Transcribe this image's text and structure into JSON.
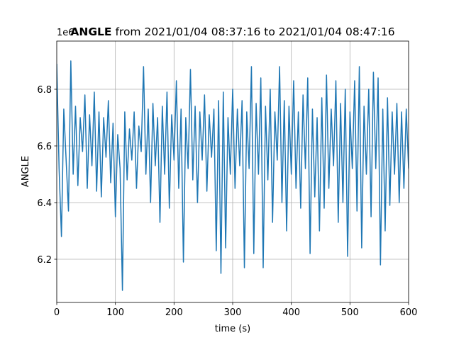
{
  "chart_data": {
    "type": "line",
    "title_bold": "ANGLE",
    "title_rest": "from 2021/01/04 08:37:16 to 2021/01/04 08:47:16",
    "x_label": "time (s)",
    "y_label": "ANGLE",
    "y_offset_label": "1e6",
    "xlim": [
      0,
      600
    ],
    "xticks": [
      0,
      100,
      200,
      300,
      400,
      500,
      600
    ],
    "ylim": [
      6.0475,
      6.97
    ],
    "yticks": [
      6.2,
      6.4,
      6.6,
      6.8
    ],
    "grid": true,
    "x": [
      0,
      4,
      8,
      12,
      16,
      20,
      24,
      28,
      32,
      36,
      40,
      44,
      48,
      52,
      56,
      60,
      64,
      68,
      72,
      76,
      80,
      84,
      88,
      92,
      96,
      100,
      104,
      108,
      112,
      116,
      120,
      124,
      128,
      132,
      136,
      140,
      144,
      148,
      152,
      156,
      160,
      164,
      168,
      172,
      176,
      180,
      184,
      188,
      192,
      196,
      200,
      204,
      208,
      212,
      216,
      220,
      224,
      228,
      232,
      236,
      240,
      244,
      248,
      252,
      256,
      260,
      264,
      268,
      272,
      276,
      280,
      284,
      288,
      292,
      296,
      300,
      304,
      308,
      312,
      316,
      320,
      324,
      328,
      332,
      336,
      340,
      344,
      348,
      352,
      356,
      360,
      364,
      368,
      372,
      376,
      380,
      384,
      388,
      392,
      396,
      400,
      404,
      408,
      412,
      416,
      420,
      424,
      428,
      432,
      436,
      440,
      444,
      448,
      452,
      456,
      460,
      464,
      468,
      472,
      476,
      480,
      484,
      488,
      492,
      496,
      500,
      504,
      508,
      512,
      516,
      520,
      524,
      528,
      532,
      536,
      540,
      544,
      548,
      552,
      556,
      560,
      564,
      568,
      572,
      576,
      580,
      584,
      588,
      592,
      596,
      600
    ],
    "series": [
      {
        "name": "ANGLE",
        "color": "#1f77b4",
        "values": [
          6.89,
          6.52,
          6.28,
          6.73,
          6.55,
          6.37,
          6.9,
          6.5,
          6.74,
          6.46,
          6.7,
          6.58,
          6.78,
          6.45,
          6.71,
          6.53,
          6.79,
          6.44,
          6.72,
          6.42,
          6.7,
          6.56,
          6.76,
          6.47,
          6.68,
          6.35,
          6.64,
          6.52,
          6.09,
          6.72,
          6.48,
          6.66,
          6.55,
          6.72,
          6.45,
          6.67,
          6.58,
          6.88,
          6.5,
          6.73,
          6.4,
          6.75,
          6.53,
          6.7,
          6.33,
          6.74,
          6.5,
          6.79,
          6.38,
          6.71,
          6.55,
          6.83,
          6.45,
          6.73,
          6.19,
          6.7,
          6.52,
          6.87,
          6.48,
          6.74,
          6.4,
          6.72,
          6.55,
          6.78,
          6.44,
          6.71,
          6.56,
          6.73,
          6.23,
          6.76,
          6.15,
          6.79,
          6.24,
          6.7,
          6.5,
          6.8,
          6.45,
          6.73,
          6.53,
          6.76,
          6.17,
          6.72,
          6.52,
          6.88,
          6.22,
          6.75,
          6.5,
          6.84,
          6.17,
          6.74,
          6.48,
          6.8,
          6.33,
          6.72,
          6.55,
          6.88,
          6.4,
          6.76,
          6.3,
          6.74,
          6.5,
          6.83,
          6.45,
          6.72,
          6.38,
          6.78,
          6.52,
          6.84,
          6.22,
          6.73,
          6.42,
          6.7,
          6.3,
          6.77,
          6.38,
          6.85,
          6.45,
          6.73,
          6.53,
          6.83,
          6.33,
          6.75,
          6.4,
          6.8,
          6.21,
          6.72,
          6.52,
          6.83,
          6.37,
          6.88,
          6.24,
          6.74,
          6.5,
          6.8,
          6.35,
          6.86,
          6.52,
          6.84,
          6.18,
          6.73,
          6.3,
          6.77,
          6.39,
          6.72,
          6.5,
          6.75,
          6.4,
          6.72,
          6.45,
          6.73,
          6.52
        ]
      }
    ]
  }
}
